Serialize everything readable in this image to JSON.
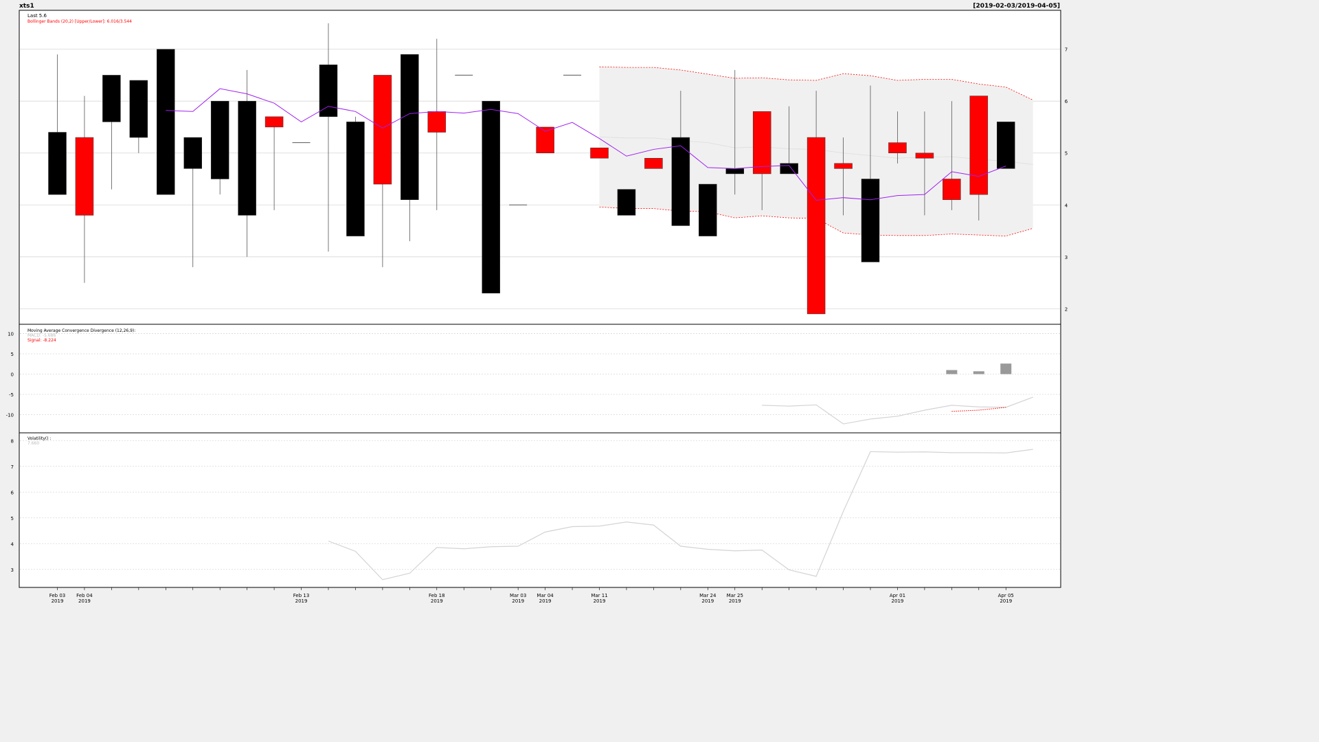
{
  "chart_title": "xts1",
  "date_range": "[2019-02-03/2019-04-05]",
  "legend": {
    "last": "Last 5.6",
    "bbands": "Bollinger Bands (20,2) [Upper/Lower]: 6.016/3.544",
    "macd_title": "Moving Average Convergence Divergence (12,26,9):",
    "macd_value": "MACD: -5.686",
    "signal_value": "Signal: -8.224",
    "vol_title": "Volatility() :",
    "vol_value": "7.660"
  },
  "colors": {
    "up": "#000000",
    "down": "#ff0000",
    "ma": "#a020f0",
    "band": "#ff0000",
    "band_fill": "#f0f0f0",
    "macd_hist": "#999999",
    "macd_line": "#d3d3d3",
    "signal": "#ff0000",
    "vol": "#d3d3d3"
  },
  "x_axis_labels": [
    {
      "i": 0,
      "text": "Feb 03",
      "year": "2019"
    },
    {
      "i": 1,
      "text": "Feb 04",
      "year": "2019"
    },
    {
      "i": 9,
      "text": "Feb 13",
      "year": "2019"
    },
    {
      "i": 14,
      "text": "Feb 18",
      "year": "2019"
    },
    {
      "i": 17,
      "text": "Mar 03",
      "year": "2019"
    },
    {
      "i": 18,
      "text": "Mar 04",
      "year": "2019"
    },
    {
      "i": 20,
      "text": "Mar 11",
      "year": "2019"
    },
    {
      "i": 24,
      "text": "Mar 24",
      "year": "2019"
    },
    {
      "i": 25,
      "text": "Mar 25",
      "year": "2019"
    },
    {
      "i": 31,
      "text": "Apr 01",
      "year": "2019"
    },
    {
      "i": 35,
      "text": "Apr 05",
      "year": "2019"
    }
  ],
  "chart_data": [
    {
      "type": "candlestick",
      "title": "xts1",
      "ylim": [
        1.7,
        7.75
      ],
      "yticks": [
        2,
        3,
        4,
        5,
        6,
        7
      ],
      "candles": [
        {
          "o": 4.2,
          "h": 6.9,
          "l": 4.2,
          "c": 5.4
        },
        {
          "o": 5.3,
          "h": 6.1,
          "l": 2.5,
          "c": 3.8
        },
        {
          "o": 5.6,
          "h": 6.5,
          "l": 4.3,
          "c": 6.5
        },
        {
          "o": 5.3,
          "h": 6.4,
          "l": 5.0,
          "c": 6.4
        },
        {
          "o": 4.2,
          "h": 7.0,
          "l": 4.2,
          "c": 7.0
        },
        {
          "o": 4.7,
          "h": 5.3,
          "l": 2.8,
          "c": 5.3
        },
        {
          "o": 4.5,
          "h": 6.0,
          "l": 4.2,
          "c": 6.0
        },
        {
          "o": 3.8,
          "h": 6.6,
          "l": 3.0,
          "c": 6.0
        },
        {
          "o": 5.7,
          "h": 5.7,
          "l": 3.9,
          "c": 5.5
        },
        {
          "o": 5.2,
          "h": 5.2,
          "l": 5.2,
          "c": 5.2
        },
        {
          "o": 5.7,
          "h": 7.5,
          "l": 3.1,
          "c": 6.7
        },
        {
          "o": 3.4,
          "h": 5.7,
          "l": 3.4,
          "c": 5.6
        },
        {
          "o": 6.5,
          "h": 6.5,
          "l": 2.8,
          "c": 4.4
        },
        {
          "o": 4.1,
          "h": 6.9,
          "l": 3.3,
          "c": 6.9
        },
        {
          "o": 5.8,
          "h": 7.2,
          "l": 3.9,
          "c": 5.4
        },
        {
          "o": 6.5,
          "h": 6.5,
          "l": 6.5,
          "c": 6.5
        },
        {
          "o": 2.3,
          "h": 6.0,
          "l": 2.3,
          "c": 6.0
        },
        {
          "o": 4.0,
          "h": 4.0,
          "l": 4.0,
          "c": 4.0
        },
        {
          "o": 5.5,
          "h": 5.5,
          "l": 5.0,
          "c": 5.0
        },
        {
          "o": 6.5,
          "h": 6.5,
          "l": 6.5,
          "c": 6.5
        },
        {
          "o": 5.1,
          "h": 5.1,
          "l": 4.9,
          "c": 4.9
        },
        {
          "o": 3.8,
          "h": 4.3,
          "l": 3.8,
          "c": 4.3
        },
        {
          "o": 4.9,
          "h": 4.9,
          "l": 4.7,
          "c": 4.7
        },
        {
          "o": 3.6,
          "h": 6.2,
          "l": 3.6,
          "c": 5.3
        },
        {
          "o": 3.4,
          "h": 4.4,
          "l": 3.4,
          "c": 4.4
        },
        {
          "o": 4.6,
          "h": 6.6,
          "l": 4.2,
          "c": 4.7
        },
        {
          "o": 5.8,
          "h": 5.8,
          "l": 3.9,
          "c": 4.6
        },
        {
          "o": 4.6,
          "h": 5.9,
          "l": 4.6,
          "c": 4.8
        },
        {
          "o": 5.3,
          "h": 6.2,
          "l": 1.9,
          "c": 1.9
        },
        {
          "o": 4.8,
          "h": 5.3,
          "l": 3.8,
          "c": 4.7
        },
        {
          "o": 2.9,
          "h": 6.3,
          "l": 2.9,
          "c": 4.5
        },
        {
          "o": 5.2,
          "h": 5.8,
          "l": 4.8,
          "c": 5.0
        },
        {
          "o": 5.0,
          "h": 5.8,
          "l": 3.8,
          "c": 4.9
        },
        {
          "o": 4.5,
          "h": 6.0,
          "l": 3.9,
          "c": 4.1
        },
        {
          "o": 6.1,
          "h": 6.1,
          "l": 3.7,
          "c": 4.2
        },
        {
          "o": 4.7,
          "h": 5.6,
          "l": 4.7,
          "c": 5.6
        }
      ],
      "candle_index": [
        0,
        1,
        2,
        3,
        4,
        5,
        6,
        7,
        8,
        9,
        10,
        11,
        12,
        13,
        14,
        16,
        17,
        19,
        20,
        21,
        22,
        23,
        24,
        24.0,
        25,
        26,
        27,
        28,
        29,
        30,
        31,
        32,
        33,
        34,
        35,
        36
      ],
      "ma": {
        "start": 4,
        "values": [
          5.82,
          5.8,
          6.24,
          6.14,
          5.96,
          5.6,
          5.9,
          5.8,
          5.48,
          5.76,
          5.8,
          5.77,
          5.84,
          5.76,
          5.42,
          5.59,
          5.28,
          4.94,
          5.07,
          5.14,
          4.72,
          4.7,
          4.74,
          4.76,
          4.09,
          4.14,
          4.1,
          4.18,
          4.2,
          4.64,
          4.55,
          4.75
        ]
      },
      "bb_upper": {
        "start": 20,
        "values": [
          6.66,
          6.65,
          6.65,
          6.6,
          6.52,
          6.44,
          6.45,
          6.41,
          6.4,
          6.53,
          6.49,
          6.4,
          6.42,
          6.42,
          6.33,
          6.27,
          6.02
        ]
      },
      "bb_lower": {
        "start": 20,
        "values": [
          3.96,
          3.93,
          3.93,
          3.88,
          3.87,
          3.75,
          3.79,
          3.75,
          3.74,
          3.46,
          3.42,
          3.41,
          3.41,
          3.44,
          3.42,
          3.4,
          3.55
        ]
      },
      "bb_mid": {
        "start": 20,
        "values": [
          5.31,
          5.29,
          5.29,
          5.24,
          5.2,
          5.1,
          5.12,
          5.08,
          5.07,
          5.0,
          4.95,
          4.9,
          4.92,
          4.93,
          4.88,
          4.84,
          4.78
        ]
      }
    },
    {
      "type": "bar",
      "title": "Moving Average Convergence Divergence (12,26,9):",
      "ylim": [
        -14.5,
        12.3
      ],
      "yticks": [
        -10,
        -5,
        0,
        5,
        10
      ],
      "histogram": [
        {
          "i": 33,
          "v": 1.0
        },
        {
          "i": 34,
          "v": 0.7
        },
        {
          "i": 35,
          "v": 2.6
        }
      ],
      "macd": {
        "start": 26,
        "values": [
          -7.7,
          -7.9,
          -7.6,
          -12.3,
          -11.1,
          -10.4,
          -8.9,
          -7.7,
          -8.1,
          -8.2,
          -5.7
        ]
      },
      "signal": {
        "start": 33,
        "values": [
          -9.2,
          -8.9,
          -8.2
        ]
      }
    },
    {
      "type": "line",
      "title": "Volatility() :",
      "ylim": [
        2.3,
        8.3
      ],
      "yticks": [
        3,
        4,
        5,
        6,
        7,
        8
      ],
      "values": {
        "start": 10,
        "values": [
          4.1,
          3.7,
          2.6,
          2.85,
          3.85,
          3.8,
          3.88,
          3.9,
          4.45,
          4.66,
          4.68,
          4.84,
          4.72,
          3.9,
          3.78,
          3.72,
          3.75,
          2.98,
          2.73,
          5.25,
          7.57,
          7.55,
          7.56,
          7.53,
          7.53,
          7.52,
          7.66
        ]
      }
    }
  ]
}
